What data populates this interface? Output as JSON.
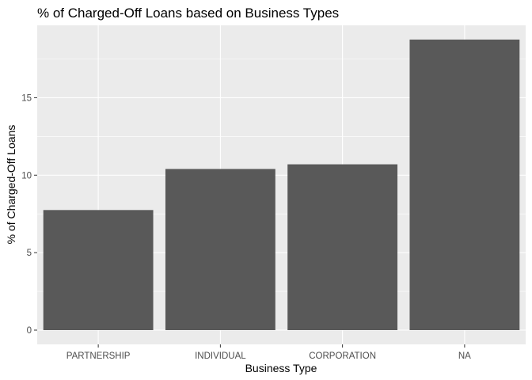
{
  "chart_data": {
    "type": "bar",
    "title": "% of Charged-Off Loans based on Business Types",
    "xlabel": "Business Type",
    "ylabel": "% of Charged-Off Loans",
    "categories": [
      "PARTNERSHIP",
      "INDIVIDUAL",
      "CORPORATION",
      "NA"
    ],
    "values": [
      7.75,
      10.4,
      10.7,
      18.75
    ],
    "ylim": [
      0,
      19.7
    ],
    "yticks": [
      0,
      5,
      10,
      15
    ],
    "grid": true,
    "panel_color": "#ebebeb",
    "bar_color": "#595959",
    "grid_color": "#ffffff"
  }
}
